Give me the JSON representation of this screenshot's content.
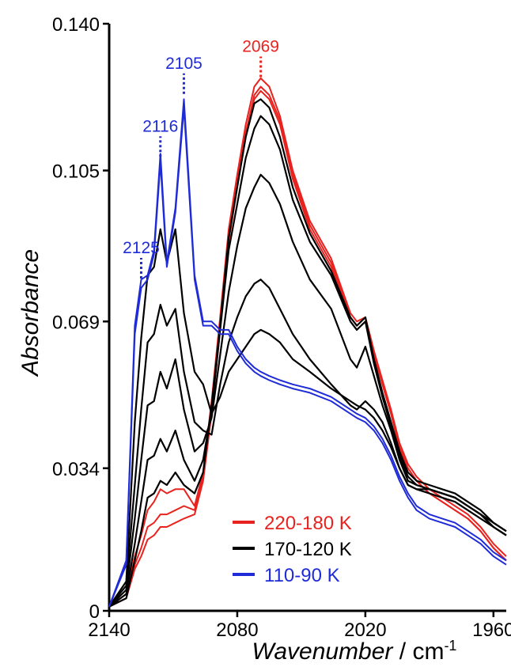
{
  "chart_data": {
    "type": "line",
    "title": "",
    "xlabel": "Wavenumber",
    "xunit_base": "cm",
    "xunit_exp": "-1",
    "ylabel": "Absorbance",
    "xlim": [
      2140,
      1954
    ],
    "ylim": [
      0,
      0.14
    ],
    "x_ticks": [
      2140,
      2080,
      2020,
      1960
    ],
    "y_ticks": [
      0,
      0.034,
      0.069,
      0.105,
      0.14
    ],
    "y_tick_labels": [
      "0",
      "0.034",
      "0.069",
      "0.105",
      "0.140"
    ],
    "grid": false,
    "legend_position": "lower-right",
    "colors": {
      "red": "#e8231f",
      "black": "#000000",
      "blue": "#1f2bd6"
    },
    "peak_annotations": [
      {
        "label": "2125",
        "x": 2125,
        "y": 0.0785,
        "color": "blue"
      },
      {
        "label": "2116",
        "x": 2116,
        "y": 0.1075,
        "color": "blue"
      },
      {
        "label": "2105",
        "x": 2105,
        "y": 0.1225,
        "color": "blue"
      },
      {
        "label": "2069",
        "x": 2069,
        "y": 0.1265,
        "color": "red"
      }
    ],
    "x": [
      2140,
      2132,
      2128,
      2125,
      2122,
      2119,
      2116,
      2113,
      2109,
      2105,
      2100,
      2096,
      2092,
      2088,
      2084,
      2080,
      2076,
      2072,
      2069,
      2065,
      2060,
      2054,
      2046,
      2036,
      2027,
      2024,
      2020,
      2016,
      2012,
      2008,
      2004,
      2000,
      1996,
      1990,
      1984,
      1978,
      1972,
      1966,
      1960,
      1954
    ],
    "series": [
      {
        "name": "220-180 K",
        "group": "red",
        "values": [
          0.001,
          0.004,
          0.013,
          0.018,
          0.024,
          0.026,
          0.029,
          0.028,
          0.029,
          0.029,
          0.025,
          0.033,
          0.05,
          0.07,
          0.091,
          0.104,
          0.116,
          0.125,
          0.127,
          0.125,
          0.118,
          0.105,
          0.093,
          0.084,
          0.071,
          0.069,
          0.07,
          0.062,
          0.055,
          0.048,
          0.04,
          0.035,
          0.032,
          0.029,
          0.027,
          0.025,
          0.023,
          0.02,
          0.016,
          0.013
        ]
      },
      {
        "name": "220-180 K",
        "group": "red",
        "values": [
          0.001,
          0.003,
          0.011,
          0.015,
          0.02,
          0.021,
          0.023,
          0.023,
          0.024,
          0.025,
          0.024,
          0.032,
          0.048,
          0.068,
          0.089,
          0.102,
          0.114,
          0.123,
          0.125,
          0.123,
          0.117,
          0.104,
          0.092,
          0.083,
          0.07,
          0.068,
          0.07,
          0.062,
          0.054,
          0.047,
          0.039,
          0.034,
          0.031,
          0.028,
          0.026,
          0.024,
          0.022,
          0.019,
          0.015,
          0.012
        ]
      },
      {
        "name": "220-180 K",
        "group": "red",
        "values": [
          0.001,
          0.003,
          0.01,
          0.013,
          0.017,
          0.018,
          0.02,
          0.02,
          0.021,
          0.022,
          0.023,
          0.031,
          0.047,
          0.067,
          0.088,
          0.101,
          0.113,
          0.122,
          0.124,
          0.122,
          0.116,
          0.103,
          0.091,
          0.082,
          0.069,
          0.067,
          0.069,
          0.061,
          0.054,
          0.047,
          0.039,
          0.034,
          0.031,
          0.028,
          0.026,
          0.024,
          0.022,
          0.019,
          0.015,
          0.012
        ]
      },
      {
        "name": "170-120 K",
        "group": "black",
        "values": [
          0.001,
          0.003,
          0.012,
          0.019,
          0.027,
          0.028,
          0.031,
          0.03,
          0.033,
          0.03,
          0.028,
          0.033,
          0.049,
          0.068,
          0.089,
          0.101,
          0.113,
          0.121,
          0.122,
          0.12,
          0.113,
          0.101,
          0.09,
          0.081,
          0.07,
          0.068,
          0.07,
          0.06,
          0.052,
          0.045,
          0.038,
          0.033,
          0.031,
          0.03,
          0.029,
          0.028,
          0.026,
          0.024,
          0.021,
          0.019
        ]
      },
      {
        "name": "170-120 K",
        "group": "black",
        "values": [
          0.001,
          0.004,
          0.016,
          0.026,
          0.036,
          0.037,
          0.041,
          0.038,
          0.043,
          0.036,
          0.031,
          0.036,
          0.048,
          0.067,
          0.086,
          0.097,
          0.108,
          0.115,
          0.118,
          0.116,
          0.11,
          0.098,
          0.088,
          0.08,
          0.069,
          0.067,
          0.069,
          0.059,
          0.051,
          0.044,
          0.037,
          0.032,
          0.03,
          0.029,
          0.028,
          0.027,
          0.025,
          0.023,
          0.02,
          0.018
        ]
      },
      {
        "name": "170-120 K",
        "group": "black",
        "values": [
          0.001,
          0.005,
          0.022,
          0.036,
          0.049,
          0.05,
          0.057,
          0.053,
          0.06,
          0.048,
          0.038,
          0.04,
          0.046,
          0.061,
          0.076,
          0.087,
          0.096,
          0.101,
          0.104,
          0.102,
          0.097,
          0.088,
          0.079,
          0.072,
          0.06,
          0.058,
          0.063,
          0.056,
          0.049,
          0.043,
          0.036,
          0.031,
          0.03,
          0.029,
          0.028,
          0.027,
          0.025,
          0.023,
          0.02,
          0.018
        ]
      },
      {
        "name": "170-120 K",
        "group": "black",
        "values": [
          0.001,
          0.006,
          0.03,
          0.048,
          0.064,
          0.066,
          0.073,
          0.068,
          0.072,
          0.057,
          0.045,
          0.043,
          0.042,
          0.054,
          0.064,
          0.07,
          0.075,
          0.078,
          0.079,
          0.077,
          0.072,
          0.066,
          0.06,
          0.054,
          0.049,
          0.048,
          0.05,
          0.048,
          0.045,
          0.04,
          0.034,
          0.03,
          0.029,
          0.029,
          0.028,
          0.027,
          0.025,
          0.023,
          0.021,
          0.019
        ]
      },
      {
        "name": "170-120 K",
        "group": "black",
        "values": [
          0.001,
          0.007,
          0.045,
          0.065,
          0.08,
          0.082,
          0.091,
          0.083,
          0.091,
          0.071,
          0.057,
          0.054,
          0.047,
          0.051,
          0.057,
          0.06,
          0.063,
          0.066,
          0.067,
          0.066,
          0.064,
          0.06,
          0.057,
          0.053,
          0.05,
          0.049,
          0.048,
          0.046,
          0.043,
          0.039,
          0.034,
          0.03,
          0.029,
          0.028,
          0.027,
          0.026,
          0.024,
          0.022,
          0.02,
          0.018
        ]
      },
      {
        "name": "110-90 K",
        "group": "blue",
        "values": [
          0.001,
          0.012,
          0.068,
          0.079,
          0.08,
          0.086,
          0.109,
          0.083,
          0.096,
          0.122,
          0.08,
          0.069,
          0.069,
          0.067,
          0.067,
          0.063,
          0.06,
          0.058,
          0.057,
          0.056,
          0.055,
          0.054,
          0.053,
          0.051,
          0.048,
          0.047,
          0.046,
          0.044,
          0.041,
          0.037,
          0.032,
          0.028,
          0.025,
          0.023,
          0.022,
          0.021,
          0.019,
          0.017,
          0.014,
          0.012
        ]
      },
      {
        "name": "110-90 K",
        "group": "blue",
        "values": [
          0.001,
          0.011,
          0.066,
          0.077,
          0.079,
          0.085,
          0.107,
          0.082,
          0.095,
          0.12,
          0.079,
          0.068,
          0.068,
          0.066,
          0.066,
          0.062,
          0.059,
          0.057,
          0.056,
          0.055,
          0.054,
          0.053,
          0.052,
          0.05,
          0.047,
          0.046,
          0.045,
          0.043,
          0.04,
          0.036,
          0.031,
          0.027,
          0.024,
          0.022,
          0.021,
          0.02,
          0.018,
          0.016,
          0.013,
          0.011
        ]
      }
    ],
    "legend": [
      {
        "label": "220-180 K",
        "color": "red"
      },
      {
        "label": "170-120 K",
        "color": "black"
      },
      {
        "label": "110-90 K",
        "color": "blue"
      }
    ]
  }
}
